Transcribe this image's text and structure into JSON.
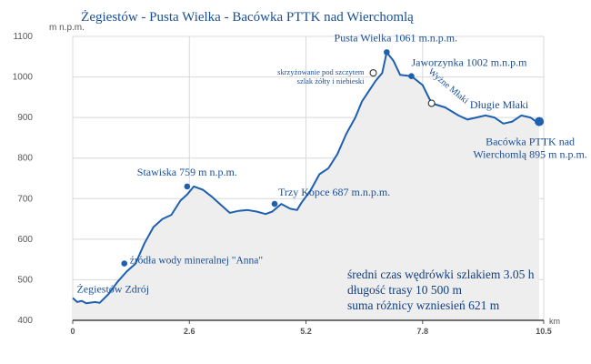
{
  "chart_data": {
    "type": "area",
    "title": "Żegiestów - Pusta Wielka - Bacówka PTTK nad Wierchomlą",
    "ylabel": "m n.p.m.",
    "xlabel": "km",
    "ylim": [
      400,
      1100
    ],
    "xlim": [
      0,
      10.5
    ],
    "y_ticks": [
      "400",
      "500",
      "600",
      "700",
      "800",
      "900",
      "1000",
      "1100"
    ],
    "x_ticks": [
      "0",
      "2.6",
      "5.2",
      "7.8",
      "10.5"
    ],
    "grid": true,
    "x": [
      0,
      0.1,
      0.2,
      0.3,
      0.5,
      0.6,
      0.8,
      1.0,
      1.2,
      1.4,
      1.6,
      1.8,
      2.0,
      2.2,
      2.4,
      2.55,
      2.7,
      2.9,
      3.1,
      3.3,
      3.5,
      3.7,
      3.9,
      4.1,
      4.3,
      4.45,
      4.65,
      4.85,
      5.0,
      5.1,
      5.3,
      5.5,
      5.7,
      5.9,
      6.1,
      6.3,
      6.45,
      6.6,
      6.75,
      6.9,
      7.0,
      7.15,
      7.3,
      7.55,
      7.8,
      8.0,
      8.3,
      8.6,
      8.8,
      9.0,
      9.2,
      9.4,
      9.6,
      9.8,
      10.0,
      10.2,
      10.4
    ],
    "y": [
      455,
      445,
      448,
      442,
      445,
      443,
      465,
      495,
      520,
      540,
      590,
      630,
      650,
      660,
      695,
      710,
      730,
      722,
      705,
      685,
      665,
      670,
      672,
      668,
      662,
      668,
      687,
      675,
      672,
      690,
      720,
      760,
      775,
      810,
      860,
      900,
      940,
      965,
      990,
      1010,
      1061,
      1040,
      1005,
      1002,
      980,
      935,
      925,
      905,
      895,
      900,
      905,
      900,
      885,
      890,
      905,
      900,
      885
    ],
    "series": [
      {
        "values": [
          455,
          445,
          448,
          442,
          445,
          443,
          465,
          495,
          520,
          540,
          590,
          630,
          650,
          660,
          695,
          710,
          730,
          722,
          705,
          685,
          665,
          670,
          672,
          668,
          662,
          668,
          687,
          675,
          672,
          690,
          720,
          760,
          775,
          810,
          860,
          900,
          940,
          965,
          990,
          1010,
          1061,
          1040,
          1005,
          1002,
          980,
          935,
          925,
          905,
          895,
          900,
          905,
          900,
          885,
          890,
          905,
          900,
          885
        ]
      }
    ],
    "annotations": [
      {
        "lines": [
          "Żegiestów Zdrój"
        ],
        "x": 0.05,
        "y": 450,
        "marker": "none",
        "anchor": "start",
        "dx": 2,
        "dy": -8,
        "size": 12
      },
      {
        "lines": [
          "źródła wody mineralnej \"Anna\""
        ],
        "x": 1.15,
        "y": 540,
        "marker": "dot",
        "anchor": "start",
        "dx": 6,
        "dy": 0,
        "size": 11.5
      },
      {
        "lines": [
          "Stawiska 759 m n.p.m."
        ],
        "x": 2.55,
        "y": 730,
        "marker": "dot",
        "anchor": "middle",
        "dx": 0,
        "dy": -12,
        "size": 12
      },
      {
        "lines": [
          "Trzy Kopce 687 m.n.p.m."
        ],
        "x": 4.5,
        "y": 687,
        "marker": "dot",
        "anchor": "start",
        "dx": 4,
        "dy": -9,
        "size": 12
      },
      {
        "lines": [
          "skrzyżowanie pod szczytem",
          "szlak żółty i niebieski"
        ],
        "x": 6.7,
        "y": 1010,
        "marker": "ring",
        "anchor": "end",
        "dx": -10,
        "dy": 2,
        "size": 8.5
      },
      {
        "lines": [
          "Pusta Wielka 1061 m.n.p.m."
        ],
        "x": 7.0,
        "y": 1061,
        "marker": "dot",
        "anchor": "middle",
        "dx": 10,
        "dy": -12,
        "size": 12
      },
      {
        "lines": [
          "Jaworzynka 1002 m.n.p.m"
        ],
        "x": 7.55,
        "y": 1002,
        "marker": "dot",
        "anchor": "start",
        "dx": 0,
        "dy": -11,
        "size": 12
      },
      {
        "lines": [
          "Wyżne Młaki"
        ],
        "x": 8.0,
        "y": 935,
        "marker": "ring",
        "anchor": "start",
        "dx": -4,
        "dy": -34,
        "size": 10,
        "rotate": 40
      },
      {
        "lines": [
          "Długie Młaki"
        ],
        "x": 9.1,
        "y": 905,
        "marker": "none",
        "anchor": "start",
        "dx": -12,
        "dy": -8,
        "size": 12
      },
      {
        "lines": [
          "Bacówka PTTK nad",
          "Wierchomlą  895 m n.p.m."
        ],
        "x": 10.4,
        "y": 890,
        "marker": "bigdot",
        "anchor": "middle",
        "dx": -10,
        "dy": 26,
        "size": 12
      }
    ],
    "summary": [
      "średni czas wędrówki szlakiem 3.05 h",
      "długość trasy 10 500 m",
      "suma różnicy wzniesień 621 m"
    ],
    "colors": {
      "line": "#1f5fb0",
      "fill": "#eeeeee",
      "text": "#1a4f96",
      "grid": "#d8d8d8",
      "axis": "#555555"
    }
  }
}
